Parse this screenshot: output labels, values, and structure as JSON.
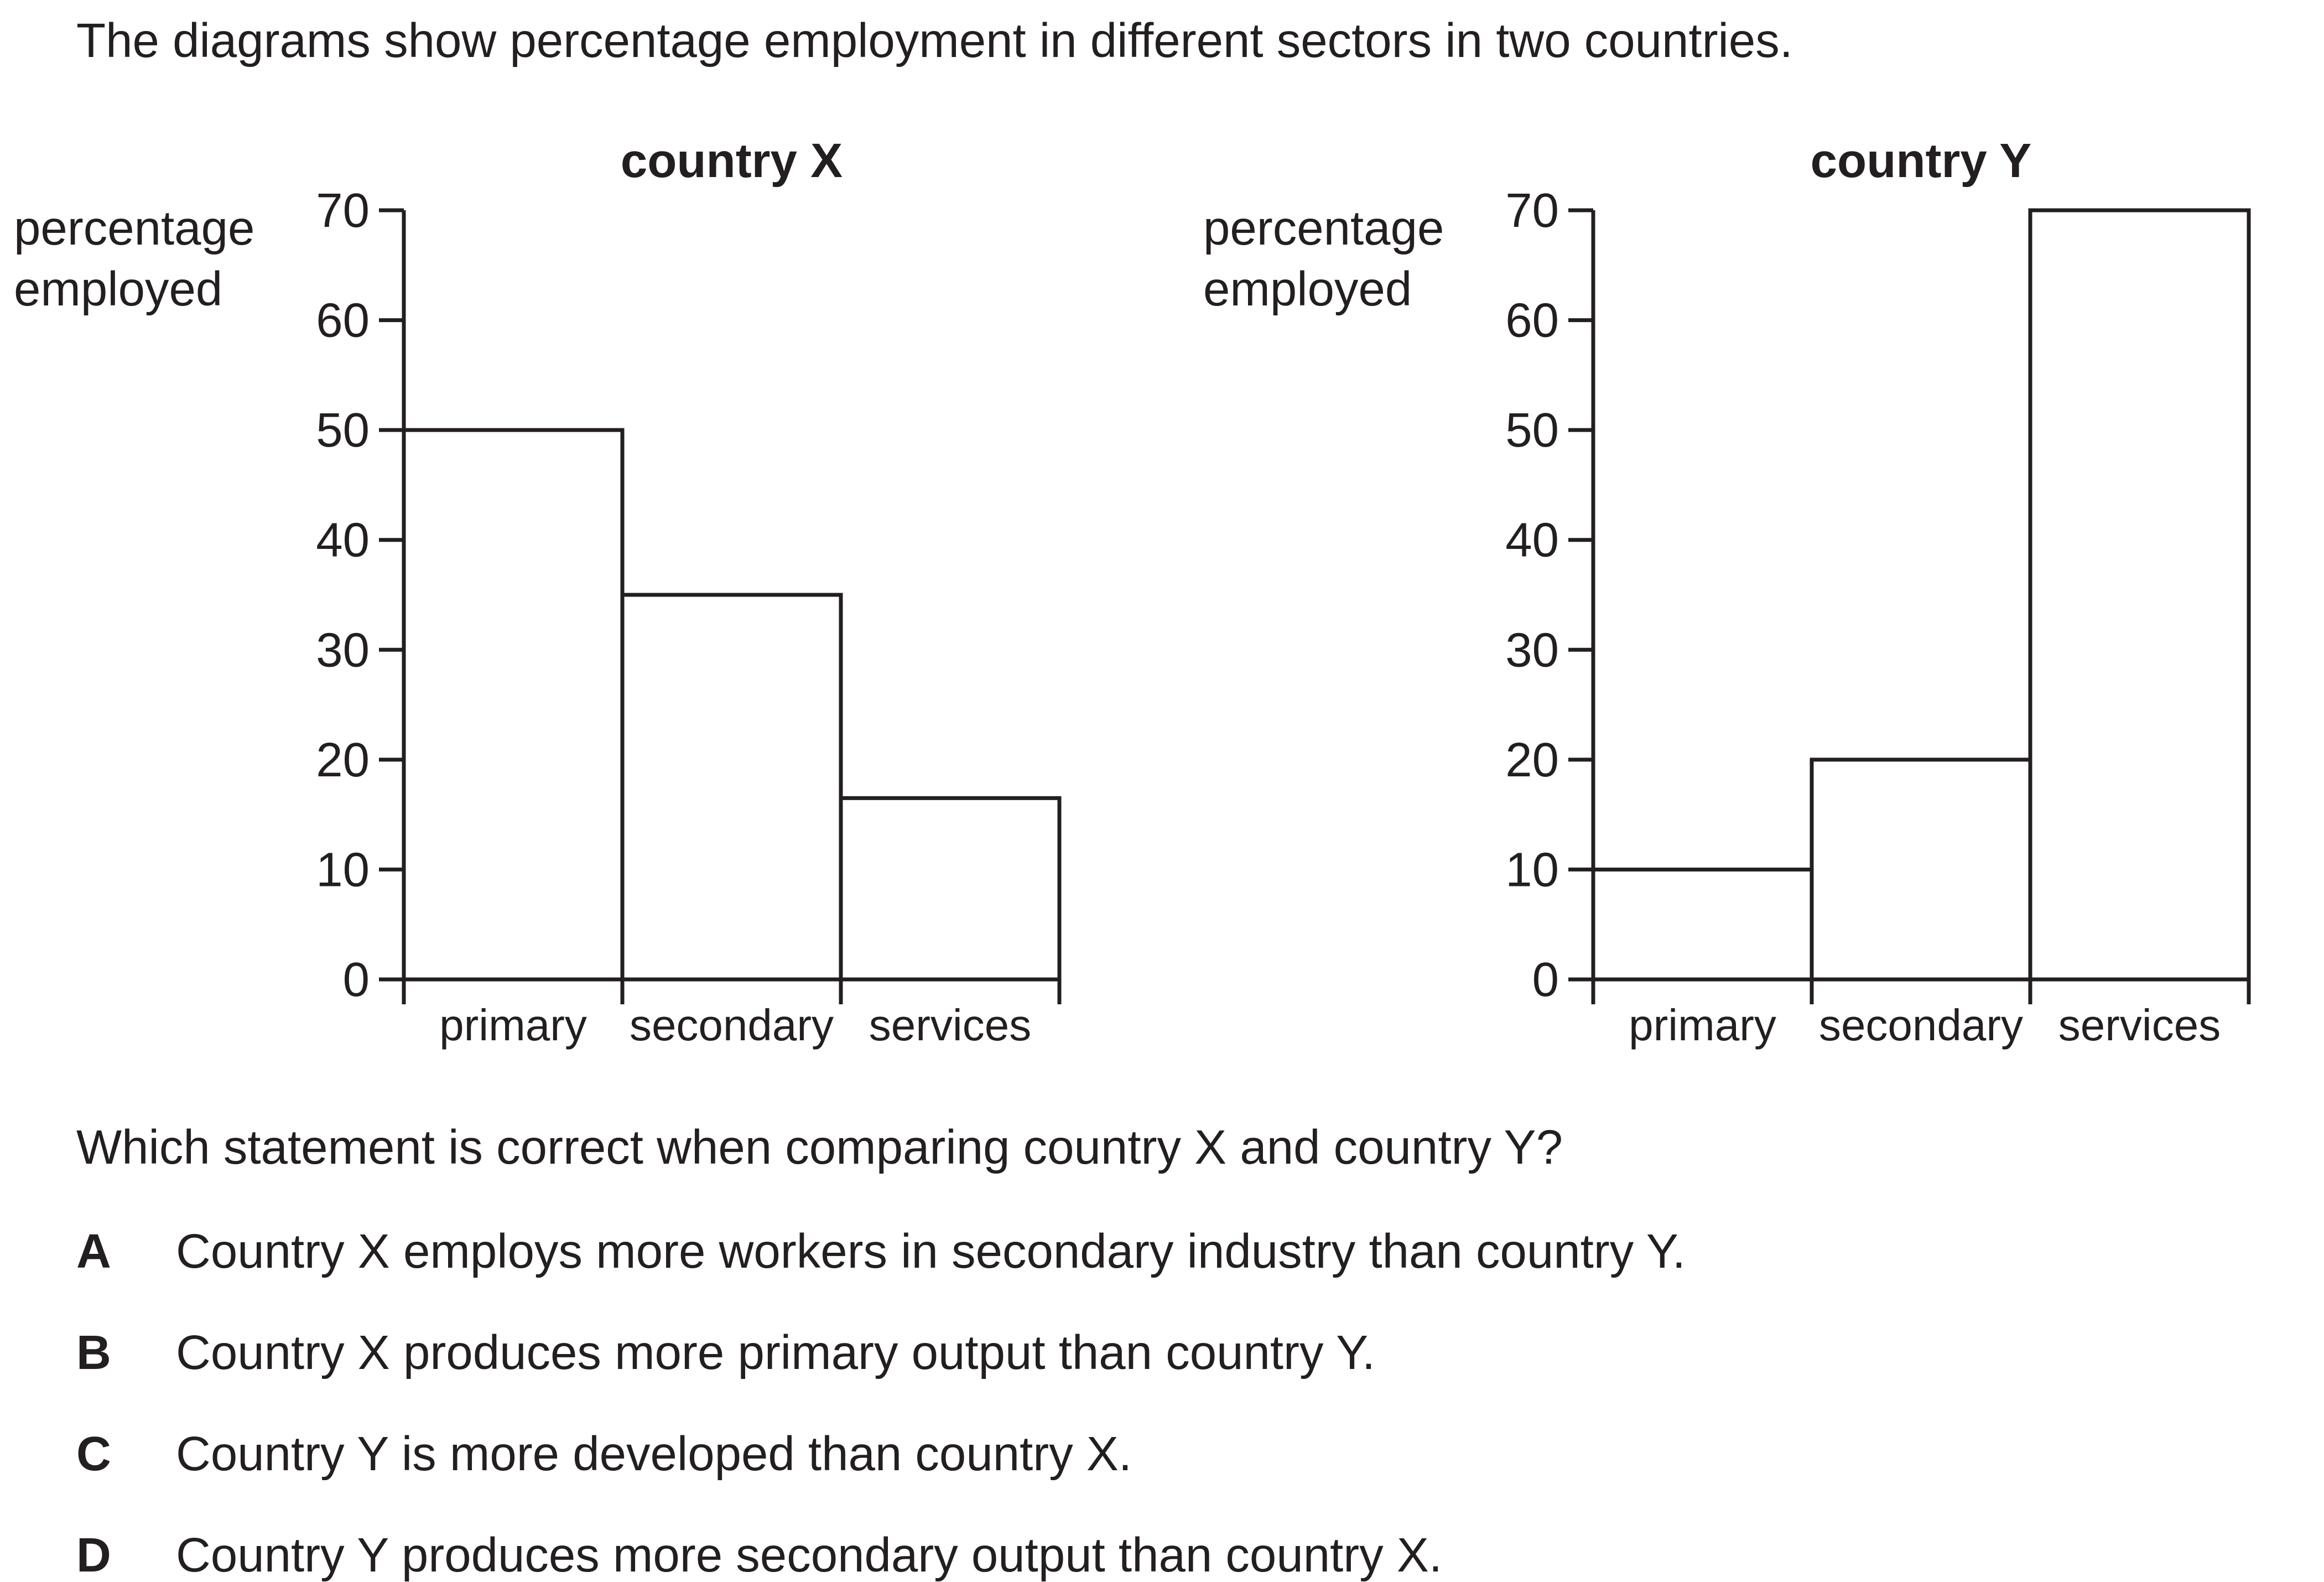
{
  "stem": "The diagrams show percentage employment in different sectors in two countries.",
  "question": "Which statement is correct when comparing country X and country Y?",
  "options": [
    {
      "letter": "A",
      "text": "Country X employs more workers in secondary industry than country Y."
    },
    {
      "letter": "B",
      "text": "Country X produces more primary output than country Y."
    },
    {
      "letter": "C",
      "text": "Country Y is more developed than country X."
    },
    {
      "letter": "D",
      "text": "Country Y produces more secondary output than country X."
    }
  ],
  "chart_data": [
    {
      "type": "bar",
      "title": "country X",
      "ylabel": [
        "percentage",
        "employed"
      ],
      "categories": [
        "primary",
        "secondary",
        "services"
      ],
      "values": [
        50,
        35,
        16.5
      ],
      "ylim": [
        0,
        70
      ],
      "yticks": [
        "0",
        "10",
        "20",
        "30",
        "40",
        "50",
        "60",
        "70"
      ],
      "grid": false,
      "legend": "none"
    },
    {
      "type": "bar",
      "title": "country Y",
      "ylabel": [
        "percentage",
        "employed"
      ],
      "categories": [
        "primary",
        "secondary",
        "services"
      ],
      "values": [
        10,
        20,
        70
      ],
      "ylim": [
        0,
        70
      ],
      "yticks": [
        "0",
        "10",
        "20",
        "30",
        "40",
        "50",
        "60",
        "70"
      ],
      "grid": false,
      "legend": "none"
    }
  ]
}
